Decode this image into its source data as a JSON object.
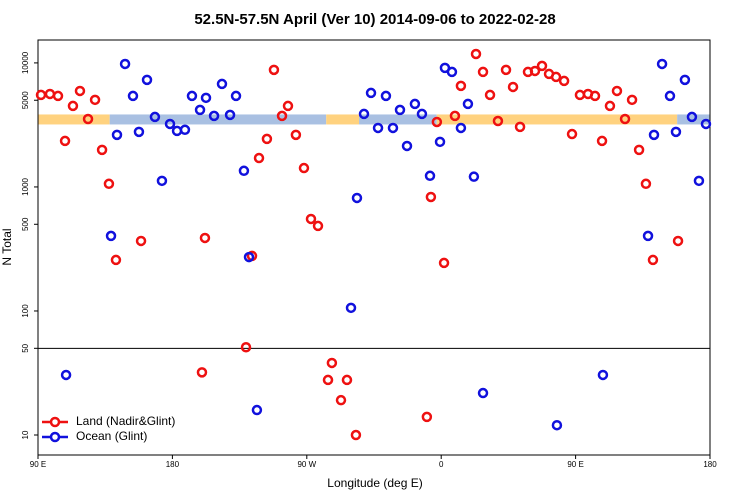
{
  "chart_data": {
    "type": "scatter",
    "title": "52.5N-57.5N April (Ver 10)   2014-09-06 to 2022-02-28",
    "x_label": "Longitude (deg E)",
    "y_label": "N Total",
    "log_y": true,
    "xlim": [
      90,
      540
    ],
    "ylim": [
      6.9,
      15300
    ],
    "xticks": [
      {
        "value": 90,
        "label": "90 E"
      },
      {
        "value": 180,
        "label": "180"
      },
      {
        "value": 270,
        "label": "90 W"
      },
      {
        "value": 360,
        "label": "0"
      },
      {
        "value": 450,
        "label": "90 E"
      },
      {
        "value": 540,
        "label": "180"
      }
    ],
    "yticks": [
      10,
      50,
      100,
      500,
      1000,
      5000,
      10000
    ],
    "hline": 50,
    "legend": "bottom-left",
    "band": {
      "value": 3500,
      "segments": [
        {
          "range": [
            90,
            138
          ],
          "color": "#ffd27f"
        },
        {
          "range": [
            138,
            283
          ],
          "color": "#a9c0e2"
        },
        {
          "range": [
            283,
            305
          ],
          "color": "#ffd27f"
        },
        {
          "range": [
            305,
            357
          ],
          "color": "#a9c0e2"
        },
        {
          "range": [
            357,
            518
          ],
          "color": "#ffd27f"
        },
        {
          "range": [
            518,
            540
          ],
          "color": "#a9c0e2"
        }
      ]
    },
    "series": [
      {
        "name": "Land (Nadir&Glint)",
        "color": "#ee1111",
        "x": [
          92.0,
          98.0,
          103.4,
          108.1,
          113.4,
          118.1,
          123.5,
          128.2,
          132.9,
          137.5,
          142.2,
          159.0,
          201.8,
          199.8,
          229.3,
          233.3,
          238.0,
          243.3,
          248.0,
          253.4,
          257.4,
          262.7,
          268.1,
          272.8,
          277.5,
          284.2,
          286.8,
          292.9,
          296.9,
          302.9,
          350.4,
          353.1,
          357.1,
          361.9,
          369.2,
          373.2,
          383.3,
          388.0,
          392.7,
          398.0,
          403.4,
          408.1,
          412.8,
          418.1,
          422.8,
          427.5,
          432.2,
          436.9,
          442.3,
          447.6,
          452.9,
          458.3,
          463.0,
          467.7,
          473.0,
          477.7,
          483.1,
          487.8,
          492.5,
          497.1,
          501.8,
          518.6
        ],
        "values": [
          5520,
          5620,
          5420,
          2350,
          4500,
          5940,
          3530,
          5040,
          1990,
          1060,
          258,
          367,
          388,
          32,
          51,
          278,
          1710,
          2440,
          8790,
          3740,
          4500,
          2630,
          1420,
          552,
          485,
          27.8,
          38.1,
          19.1,
          27.8,
          10,
          14,
          830,
          3340,
          244,
          3740,
          6530,
          11800,
          8460,
          5520,
          3400,
          8790,
          6400,
          3050,
          8460,
          8610,
          9460,
          8150,
          7710,
          7160,
          2670,
          5520,
          5620,
          5420,
          2350,
          4500,
          5940,
          3530,
          5040,
          1990,
          1060,
          258,
          367
        ]
      },
      {
        "name": "Ocean (Glint)",
        "color": "#1111dd",
        "x": [
          108.8,
          138.9,
          142.9,
          148.3,
          153.6,
          157.6,
          163.0,
          168.3,
          173.0,
          178.4,
          183.1,
          188.4,
          193.1,
          198.5,
          202.5,
          207.9,
          213.2,
          218.6,
          222.6,
          227.9,
          231.3,
          236.6,
          299.6,
          303.6,
          308.3,
          313.0,
          317.7,
          323.0,
          327.7,
          332.4,
          337.1,
          342.4,
          347.1,
          352.5,
          359.2,
          362.5,
          367.2,
          373.2,
          377.9,
          381.9,
          388.0,
          437.5,
          468.3,
          498.5,
          502.5,
          507.9,
          513.2,
          517.2,
          523.2,
          527.9,
          532.6,
          537.3
        ],
        "values": [
          30.5,
          403,
          2630,
          9810,
          5420,
          2780,
          7300,
          3670,
          1120,
          3220,
          2830,
          2890,
          5420,
          4180,
          5230,
          3740,
          6770,
          3810,
          5420,
          1350,
          272,
          15.9,
          106,
          815,
          3880,
          5730,
          2990,
          5420,
          2990,
          4180,
          2140,
          4670,
          3880,
          1230,
          2310,
          9120,
          8460,
          2990,
          4670,
          1210,
          21.8,
          12.0,
          30.5,
          403,
          2630,
          9810,
          5420,
          2780,
          7300,
          3670,
          1120,
          3220
        ]
      }
    ]
  }
}
